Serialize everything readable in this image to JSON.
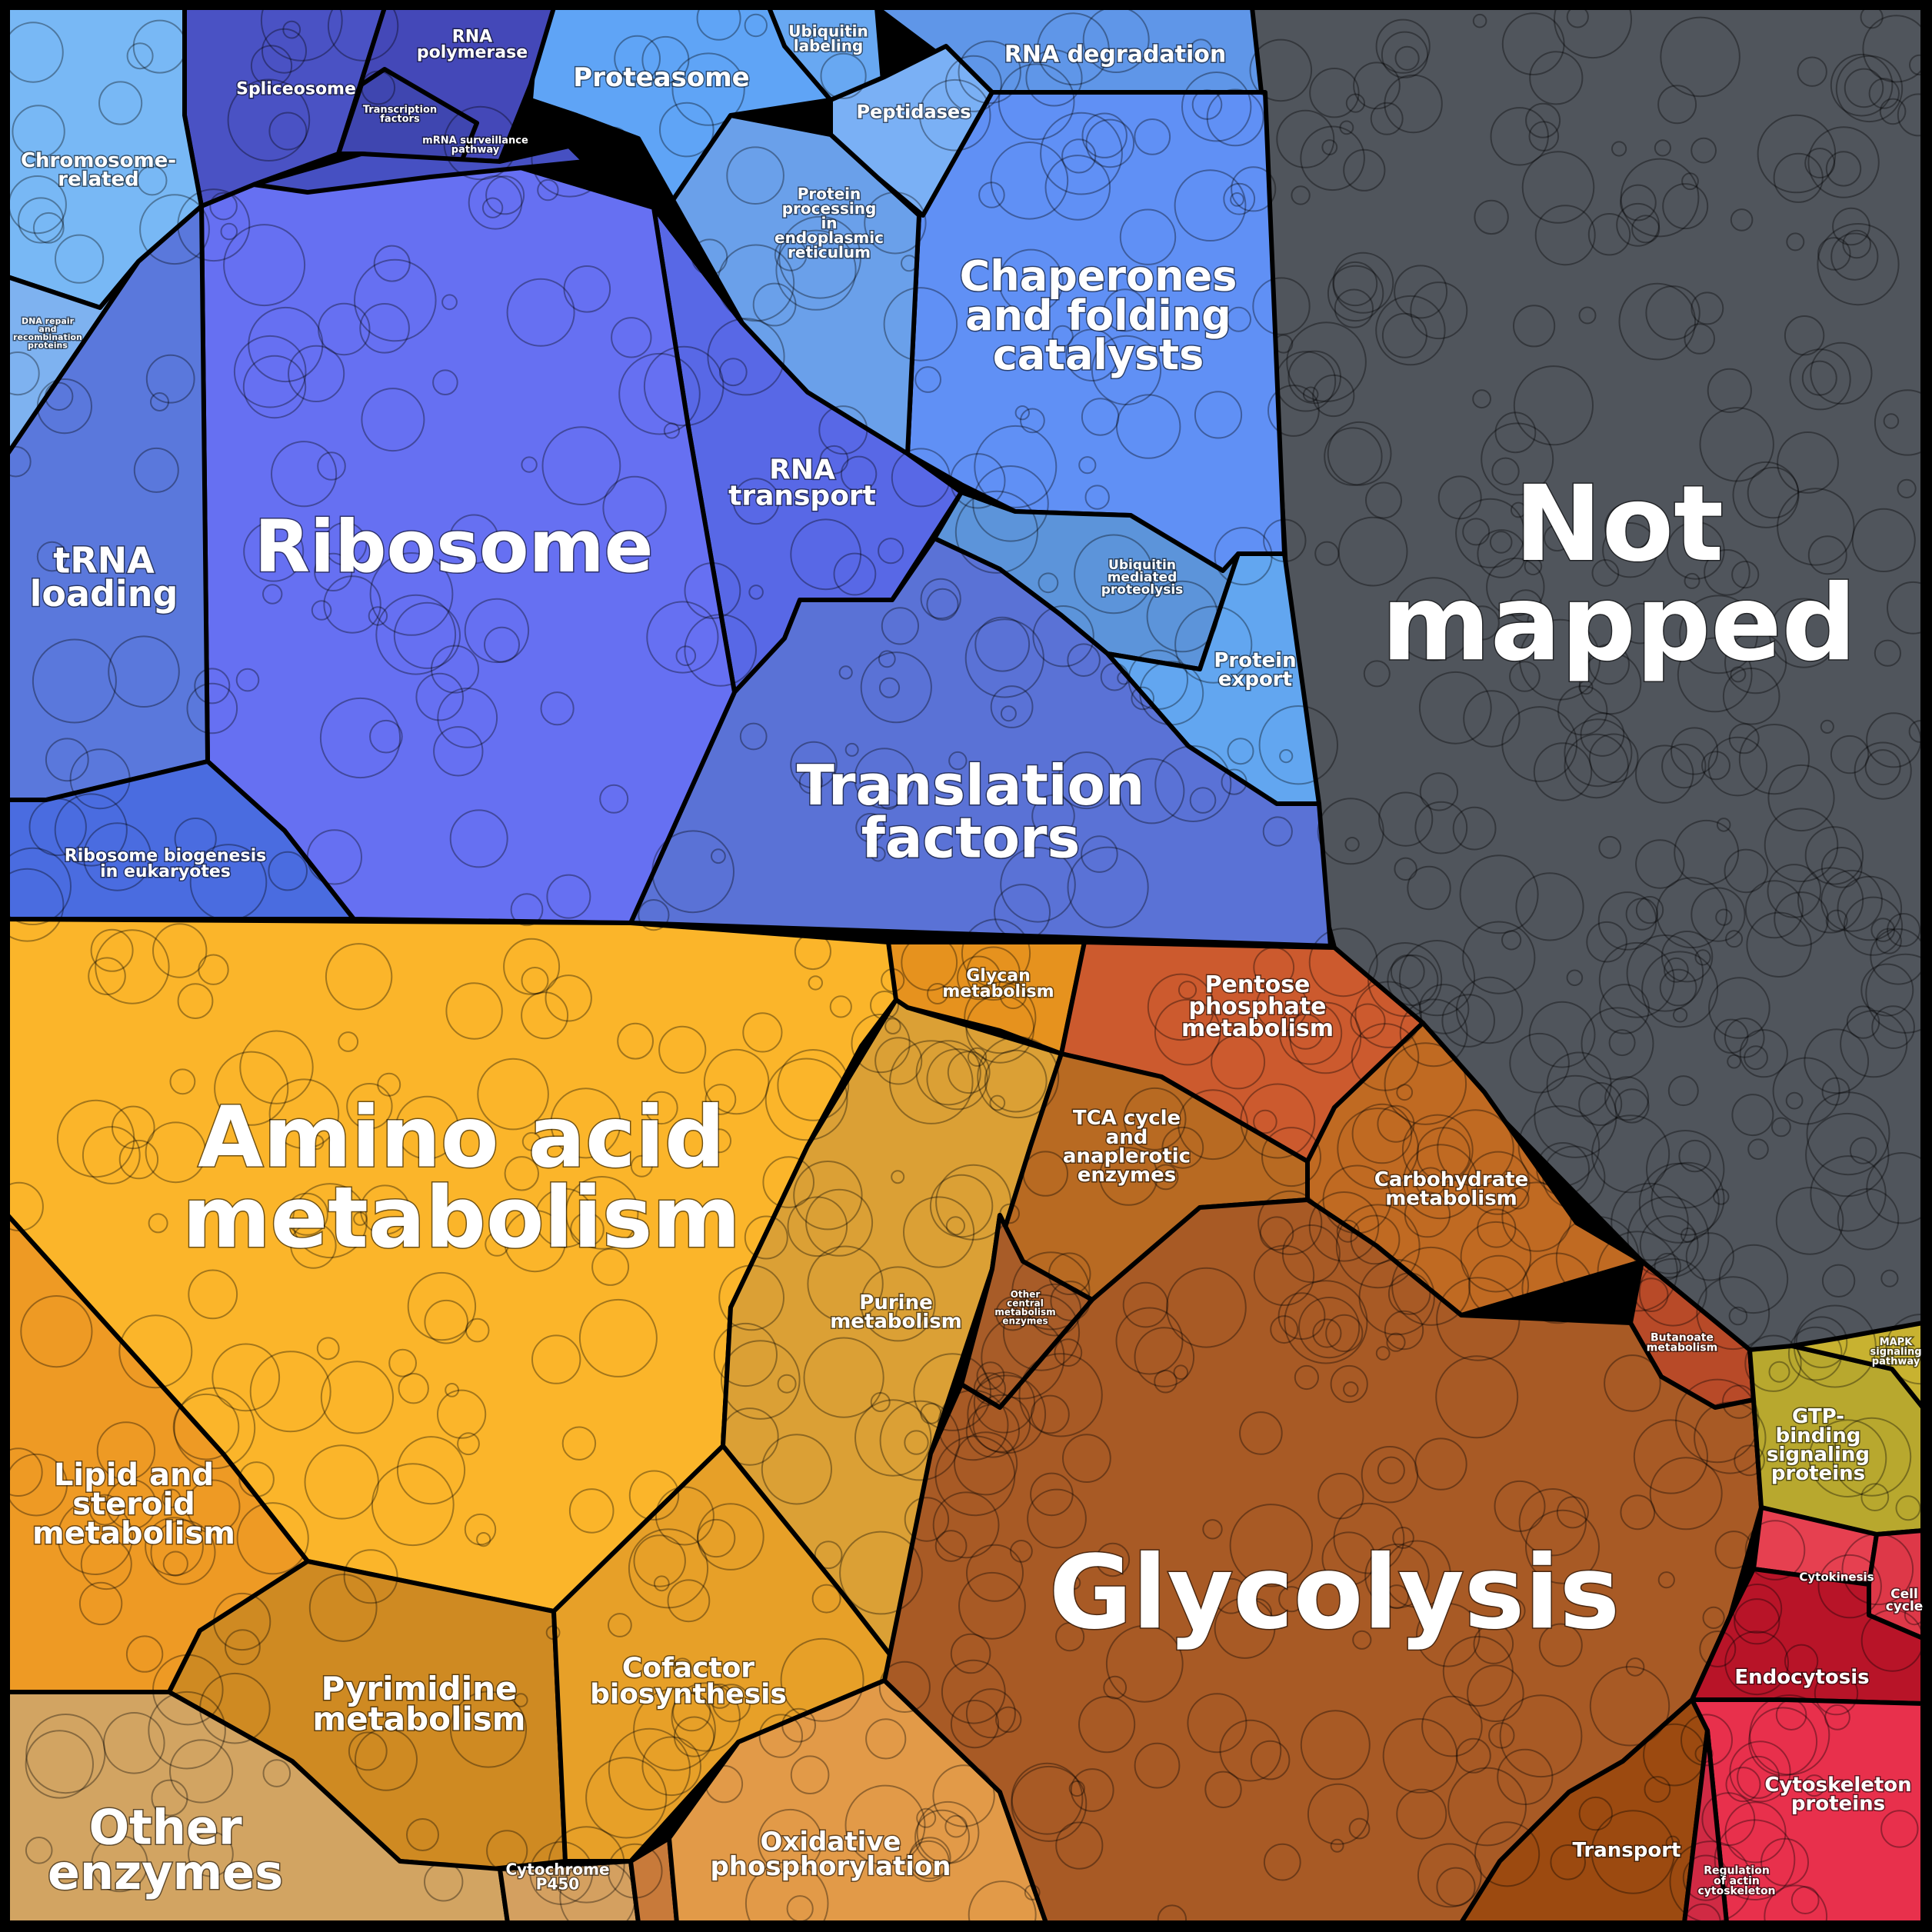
{
  "title": "",
  "colors": {
    "ribosome": "#6670f2",
    "translation_factors": "#5a72d6",
    "rna_transport": "#5868e6",
    "trna_loading": "#5a78dc",
    "chaperones": "#6090f5",
    "protein_processing": "#6aa0ea",
    "proteasome": "#5fa4f6",
    "rna_degradation": "#5f96e8",
    "peptidases": "#7ab0f5",
    "ubiquitin_labeling": "#68a8f2",
    "chromosome_related": "#78b8f5",
    "spliceosome": "#4a52c4",
    "rna_polymerase": "#4448b8",
    "transcription_factors": "#3f46b0",
    "mrna_surveillance": "#4650c2",
    "dna_repair": "#7eb2f0",
    "ribosome_biogenesis": "#4a6ce0",
    "ubiquitin_proteolysis": "#5c94da",
    "protein_export": "#62a6f0",
    "not_mapped": "#50555c",
    "amino_acid": "#fbb52a",
    "lipid": "#ee9a24",
    "pyrimidine": "#cf8a22",
    "cofactor": "#e7a028",
    "purine": "#dba035",
    "glycan": "#e6921e",
    "other_enzymes": "#d2a462",
    "cytochrome": "#d4a060",
    "oxidative": "#e29a48",
    "methane": "#c87a3a",
    "glycolysis": "#a85a25",
    "pentose": "#cc5a2e",
    "tca": "#b86a22",
    "carbohydrate": "#c06a22",
    "other_central": "#a85c28",
    "butanoate": "#b84a28",
    "transport": "#9c4a10",
    "gtp": "#b8a82e",
    "mapk": "#c8b230",
    "cytokinesis": "#e64050",
    "cell_cycle": "#de3848",
    "endocytosis": "#b81428",
    "cytoskeleton": "#e8304c",
    "regulation_actin": "#d02a44"
  },
  "labels": {
    "not_mapped": [
      "Not",
      "mapped"
    ],
    "glycolysis": [
      "Glycolysis"
    ],
    "amino_acid": [
      "Amino acid",
      "metabolism"
    ],
    "ribosome": [
      "Ribosome"
    ],
    "translation_factors": [
      "Translation",
      "factors"
    ],
    "chaperones": [
      "Chaperones",
      "and folding",
      "catalysts"
    ],
    "rna_transport": [
      "RNA",
      "transport"
    ],
    "trna_loading": [
      "tRNA",
      "loading"
    ],
    "proteasome": [
      "Proteasome"
    ],
    "rna_degradation": [
      "RNA degradation"
    ],
    "peptidases": [
      "Peptidases"
    ],
    "ubiquitin_labeling": [
      "Ubiquitin",
      "labeling"
    ],
    "protein_processing": [
      "Protein",
      "processing",
      "in",
      "endoplasmic",
      "reticulum"
    ],
    "ubiquitin_proteolysis": [
      "Ubiquitin",
      "mediated",
      "proteolysis"
    ],
    "protein_export": [
      "Protein",
      "export"
    ],
    "chromosome_related": [
      "Chromosome-",
      "related"
    ],
    "spliceosome": [
      "Spliceosome"
    ],
    "rna_polymerase": [
      "RNA",
      "polymerase"
    ],
    "transcription_factors": [
      "Transcription",
      "factors"
    ],
    "mrna_surveillance": [
      "mRNA surveillance",
      "pathway"
    ],
    "dna_repair": [
      "DNA repair",
      "and",
      "recombination",
      "proteins"
    ],
    "ribosome_biogenesis": [
      "Ribosome biogenesis",
      "in eukaryotes"
    ],
    "lipid": [
      "Lipid and",
      "steroid",
      "metabolism"
    ],
    "pyrimidine": [
      "Pyrimidine",
      "metabolism"
    ],
    "cofactor": [
      "Cofactor",
      "biosynthesis"
    ],
    "purine": [
      "Purine",
      "metabolism"
    ],
    "glycan": [
      "Glycan",
      "metabolism"
    ],
    "other_enzymes": [
      "Other",
      "enzymes"
    ],
    "cytochrome": [
      "Cytochrome",
      "P450"
    ],
    "oxidative": [
      "Oxidative",
      "phosphorylation"
    ],
    "pentose": [
      "Pentose",
      "phosphate",
      "metabolism"
    ],
    "tca": [
      "TCA cycle",
      "and",
      "anaplerotic",
      "enzymes"
    ],
    "carbohydrate": [
      "Carbohydrate",
      "metabolism"
    ],
    "other_central": [
      "Other",
      "central",
      "metabolism",
      "enzymes"
    ],
    "butanoate": [
      "Butanoate",
      "metabolism"
    ],
    "transport": [
      "Transport"
    ],
    "gtp": [
      "GTP-",
      "binding",
      "signaling",
      "proteins"
    ],
    "mapk": [
      "MAPK",
      "signaling",
      "pathway"
    ],
    "cytokinesis": [
      "Cytokinesis"
    ],
    "cell_cycle": [
      "Cell",
      "cycle"
    ],
    "endocytosis": [
      "Endocytosis"
    ],
    "cytoskeleton": [
      "Cytoskeleton",
      "proteins"
    ],
    "regulation_actin": [
      "Regulation",
      "of actin",
      "cytoskeleton"
    ]
  }
}
